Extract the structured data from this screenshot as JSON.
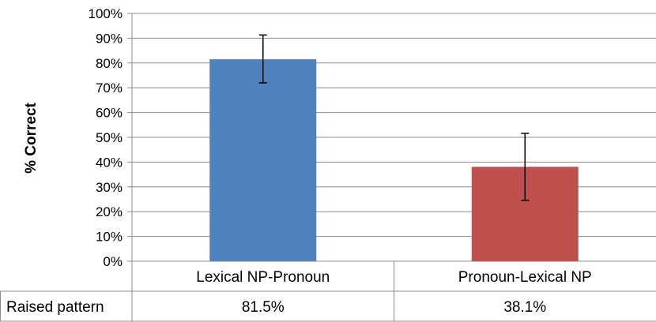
{
  "chart_data": {
    "type": "bar",
    "title": "",
    "xlabel": "",
    "ylabel": "% Correct",
    "ylim": [
      0,
      100
    ],
    "yticks": [
      0,
      10,
      20,
      30,
      40,
      50,
      60,
      70,
      80,
      90,
      100
    ],
    "ytick_suffix": "%",
    "grid": true,
    "categories": [
      "Lexical NP-Pronoun",
      "Pronoun-Lexical NP"
    ],
    "series": [
      {
        "values": [
          81.5,
          38.1
        ],
        "error_low": [
          72,
          24.6
        ],
        "error_high": [
          91.3,
          51.6
        ],
        "colors": [
          "#4F81BD",
          "#C0504D"
        ]
      }
    ],
    "data_table": {
      "row_label": "Raised pattern",
      "cells": [
        "81.5%",
        "38.1%"
      ]
    }
  }
}
